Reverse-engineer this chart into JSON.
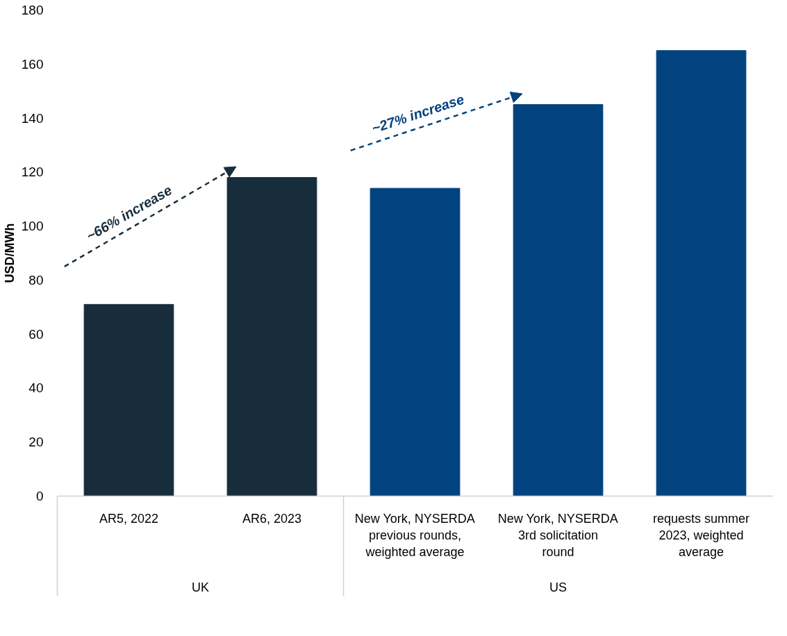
{
  "chart_data": {
    "type": "bar",
    "ylabel": "USD/MWh",
    "categories": [
      "AR5, 2022",
      "AR6, 2023",
      "New York, NYSERDA previous rounds, weighted average",
      "New York, NYSERDA 3rd solicitation round",
      "requests summer 2023, weighted average"
    ],
    "values": [
      71,
      118,
      114,
      145,
      165
    ],
    "colors": [
      "#182d3c",
      "#182d3c",
      "#02427f",
      "#02427f",
      "#02427f"
    ],
    "ylim": [
      0,
      180
    ],
    "yticks": [
      0,
      20,
      40,
      60,
      80,
      100,
      120,
      140,
      160,
      180
    ],
    "grid": false,
    "annotations": [
      "~66% increase",
      "~27% increase",
      "UK",
      "US"
    ]
  }
}
